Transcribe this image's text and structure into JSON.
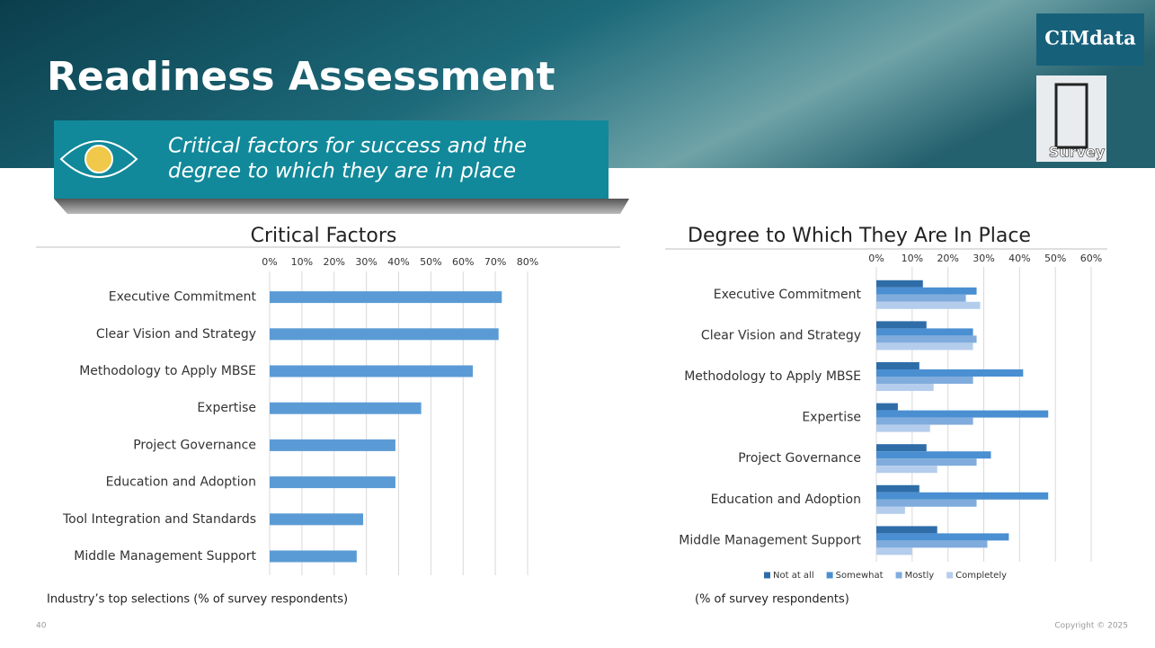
{
  "slide": {
    "title": "Readiness Assessment",
    "subtitle_lines": [
      "Critical factors for success and the",
      "degree to which they are in place"
    ],
    "logo": "CIMdata",
    "icon_label": "Survey",
    "page_number": "40",
    "copyright": "Copyright © 2025"
  },
  "chart_data": [
    {
      "type": "bar",
      "orientation": "horizontal",
      "title": "Critical Factors",
      "note": "Industry’s top selections (% of survey respondents)",
      "categories": [
        "Executive Commitment",
        "Clear Vision and Strategy",
        "Methodology to Apply MBSE",
        "Expertise",
        "Project Governance",
        "Education and Adoption",
        "Tool Integration and Standards",
        "Middle Management Support"
      ],
      "series": [
        {
          "color": "#5b9bd5",
          "values": [
            72,
            71,
            63,
            47,
            39,
            39,
            29,
            27
          ]
        }
      ],
      "xlim": [
        0,
        80
      ],
      "xticks": [
        {
          "value": 0,
          "label": "0%"
        },
        {
          "value": 10,
          "label": "10%"
        },
        {
          "value": 20,
          "label": "20%"
        },
        {
          "value": 30,
          "label": "30%"
        },
        {
          "value": 40,
          "label": "40%"
        },
        {
          "value": 50,
          "label": "50%"
        },
        {
          "value": 60,
          "label": "60%"
        },
        {
          "value": 70,
          "label": "70%"
        },
        {
          "value": 80,
          "label": "80%"
        }
      ],
      "grid": true
    },
    {
      "type": "bar",
      "orientation": "horizontal",
      "title": "Degree to Which They Are In Place",
      "note": "(% of survey respondents)",
      "categories": [
        "Executive Commitment",
        "Clear Vision and Strategy",
        "Methodology to Apply MBSE",
        "Expertise",
        "Project Governance",
        "Education and Adoption",
        "Middle Management Support"
      ],
      "series": [
        {
          "name": "Not at all",
          "color": "#2e6da8",
          "values": [
            13,
            14,
            12,
            6,
            14,
            12,
            17
          ]
        },
        {
          "name": "Somewhat",
          "color": "#4a8fd1",
          "values": [
            28,
            27,
            41,
            48,
            32,
            48,
            37
          ]
        },
        {
          "name": "Mostly",
          "color": "#80acdd",
          "values": [
            25,
            28,
            27,
            27,
            28,
            28,
            31
          ]
        },
        {
          "name": "Completely",
          "color": "#b5cdec",
          "values": [
            29,
            27,
            16,
            15,
            17,
            8,
            10
          ]
        }
      ],
      "xlim": [
        0,
        60
      ],
      "xticks": [
        {
          "value": 0,
          "label": "0%"
        },
        {
          "value": 10,
          "label": "10%"
        },
        {
          "value": 20,
          "label": "20%"
        },
        {
          "value": 30,
          "label": "30%"
        },
        {
          "value": 40,
          "label": "40%"
        },
        {
          "value": 50,
          "label": "50%"
        },
        {
          "value": 60,
          "label": "60%"
        }
      ],
      "grid": true,
      "legend": "bottom"
    }
  ]
}
